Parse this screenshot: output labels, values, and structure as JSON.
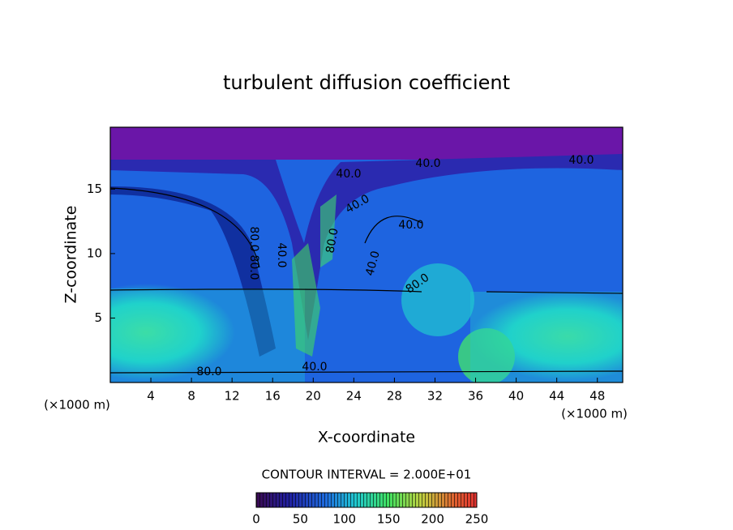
{
  "chart_data": {
    "type": "contour",
    "title": "turbulent diffusion coefficient",
    "x_label": "X-coordinate",
    "y_label": "Z-coordinate",
    "x_unit_label": "(×1000 m)",
    "xlim": [
      0,
      50.5
    ],
    "xticks": [
      4,
      8,
      12,
      16,
      20,
      24,
      28,
      32,
      36,
      40,
      44,
      48
    ],
    "ylim": [
      0,
      19.8
    ],
    "yticks": [
      5,
      10,
      15
    ],
    "contour_interval_label": "CONTOUR INTERVAL = 2.000E+01",
    "contour_labels": [
      "40.0",
      "40.0",
      "40.0",
      "40.0",
      "40.0",
      "40.0",
      "40.0",
      "80.0",
      "80.0",
      "80.0",
      "80.0",
      "80.0",
      "40.0"
    ],
    "colorbar_lim": [
      0,
      250
    ],
    "colorbar_ticks": [
      0,
      50,
      100,
      150,
      200,
      250
    ]
  }
}
